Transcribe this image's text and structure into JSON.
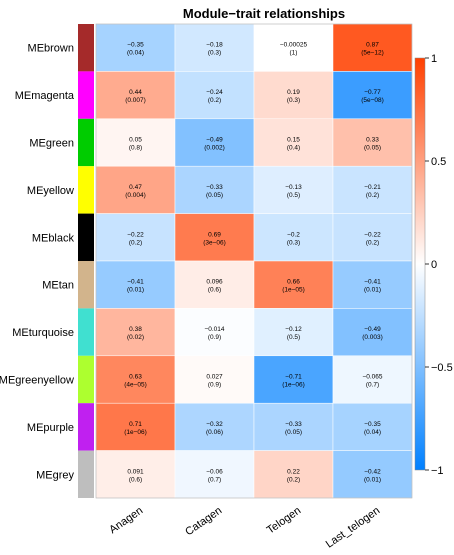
{
  "chart_data": {
    "type": "heatmap",
    "title": "Module−trait relationships",
    "columns": [
      "Anagen",
      "Catagen",
      "Telogen",
      "Last_telogen"
    ],
    "rows": [
      {
        "name": "MEbrown",
        "module_color": "#a52a2a",
        "cells": [
          {
            "value": -0.35,
            "label": "−0.35",
            "pvalue": "(0.04)"
          },
          {
            "value": -0.18,
            "label": "−0.18",
            "pvalue": "(0.3)"
          },
          {
            "value": -0.00025,
            "label": "−0.00025",
            "pvalue": "(1)"
          },
          {
            "value": 0.87,
            "label": "0.87",
            "pvalue": "(5e−12)"
          }
        ]
      },
      {
        "name": "MEmagenta",
        "module_color": "#ff00ff",
        "cells": [
          {
            "value": 0.44,
            "label": "0.44",
            "pvalue": "(0.007)"
          },
          {
            "value": -0.24,
            "label": "−0.24",
            "pvalue": "(0.2)"
          },
          {
            "value": 0.19,
            "label": "0.19",
            "pvalue": "(0.3)"
          },
          {
            "value": -0.77,
            "label": "−0.77",
            "pvalue": "(5e−08)"
          }
        ]
      },
      {
        "name": "MEgreen",
        "module_color": "#00cc00",
        "cells": [
          {
            "value": 0.05,
            "label": "0.05",
            "pvalue": "(0.8)"
          },
          {
            "value": -0.49,
            "label": "−0.49",
            "pvalue": "(0.002)"
          },
          {
            "value": 0.15,
            "label": "0.15",
            "pvalue": "(0.4)"
          },
          {
            "value": 0.33,
            "label": "0.33",
            "pvalue": "(0.05)"
          }
        ]
      },
      {
        "name": "MEyellow",
        "module_color": "#ffff00",
        "cells": [
          {
            "value": 0.47,
            "label": "0.47",
            "pvalue": "(0.004)"
          },
          {
            "value": -0.33,
            "label": "−0.33",
            "pvalue": "(0.05)"
          },
          {
            "value": -0.13,
            "label": "−0.13",
            "pvalue": "(0.5)"
          },
          {
            "value": -0.21,
            "label": "−0.21",
            "pvalue": "(0.2)"
          }
        ]
      },
      {
        "name": "MEblack",
        "module_color": "#000000",
        "cells": [
          {
            "value": -0.22,
            "label": "−0.22",
            "pvalue": "(0.2)"
          },
          {
            "value": 0.69,
            "label": "0.69",
            "pvalue": "(3e−06)"
          },
          {
            "value": -0.2,
            "label": "−0.2",
            "pvalue": "(0.3)"
          },
          {
            "value": -0.22,
            "label": "−0.22",
            "pvalue": "(0.2)"
          }
        ]
      },
      {
        "name": "MEtan",
        "module_color": "#d2b48c",
        "cells": [
          {
            "value": -0.41,
            "label": "−0.41",
            "pvalue": "(0.01)"
          },
          {
            "value": 0.096,
            "label": "0.096",
            "pvalue": "(0.6)"
          },
          {
            "value": 0.66,
            "label": "0.66",
            "pvalue": "(1e−05)"
          },
          {
            "value": -0.41,
            "label": "−0.41",
            "pvalue": "(0.01)"
          }
        ]
      },
      {
        "name": "MEturquoise",
        "module_color": "#40e0d0",
        "cells": [
          {
            "value": 0.38,
            "label": "0.38",
            "pvalue": "(0.02)"
          },
          {
            "value": -0.014,
            "label": "−0.014",
            "pvalue": "(0.9)"
          },
          {
            "value": -0.12,
            "label": "−0.12",
            "pvalue": "(0.5)"
          },
          {
            "value": -0.49,
            "label": "−0.49",
            "pvalue": "(0.003)"
          }
        ]
      },
      {
        "name": "MEgreenyellow",
        "module_color": "#adff2f",
        "cells": [
          {
            "value": 0.63,
            "label": "0.63",
            "pvalue": "(4e−05)"
          },
          {
            "value": 0.027,
            "label": "0.027",
            "pvalue": "(0.9)"
          },
          {
            "value": -0.71,
            "label": "−0.71",
            "pvalue": "(1e−06)"
          },
          {
            "value": -0.065,
            "label": "−0.065",
            "pvalue": "(0.7)"
          }
        ]
      },
      {
        "name": "MEpurple",
        "module_color": "#c020f0",
        "cells": [
          {
            "value": 0.71,
            "label": "0.71",
            "pvalue": "(1e−06)"
          },
          {
            "value": -0.32,
            "label": "−0.32",
            "pvalue": "(0.06)"
          },
          {
            "value": -0.33,
            "label": "−0.33",
            "pvalue": "(0.05)"
          },
          {
            "value": -0.35,
            "label": "−0.35",
            "pvalue": "(0.04)"
          }
        ]
      },
      {
        "name": "MEgrey",
        "module_color": "#bebebe",
        "cells": [
          {
            "value": 0.091,
            "label": "0.091",
            "pvalue": "(0.6)"
          },
          {
            "value": -0.06,
            "label": "−0.06",
            "pvalue": "(0.7)"
          },
          {
            "value": 0.22,
            "label": "0.22",
            "pvalue": "(0.2)"
          },
          {
            "value": -0.42,
            "label": "−0.42",
            "pvalue": "(0.01)"
          }
        ]
      }
    ],
    "color_scale": {
      "range": [
        -1,
        1
      ],
      "ticks": [
        1,
        0.5,
        0,
        -0.5,
        -1
      ],
      "tick_labels": [
        "1",
        "0.5",
        "0",
        "−0.5",
        "−1"
      ],
      "low_color": "#0080ff",
      "mid_color": "#ffffff",
      "high_color": "#ff4000"
    },
    "legend_position": "right"
  }
}
